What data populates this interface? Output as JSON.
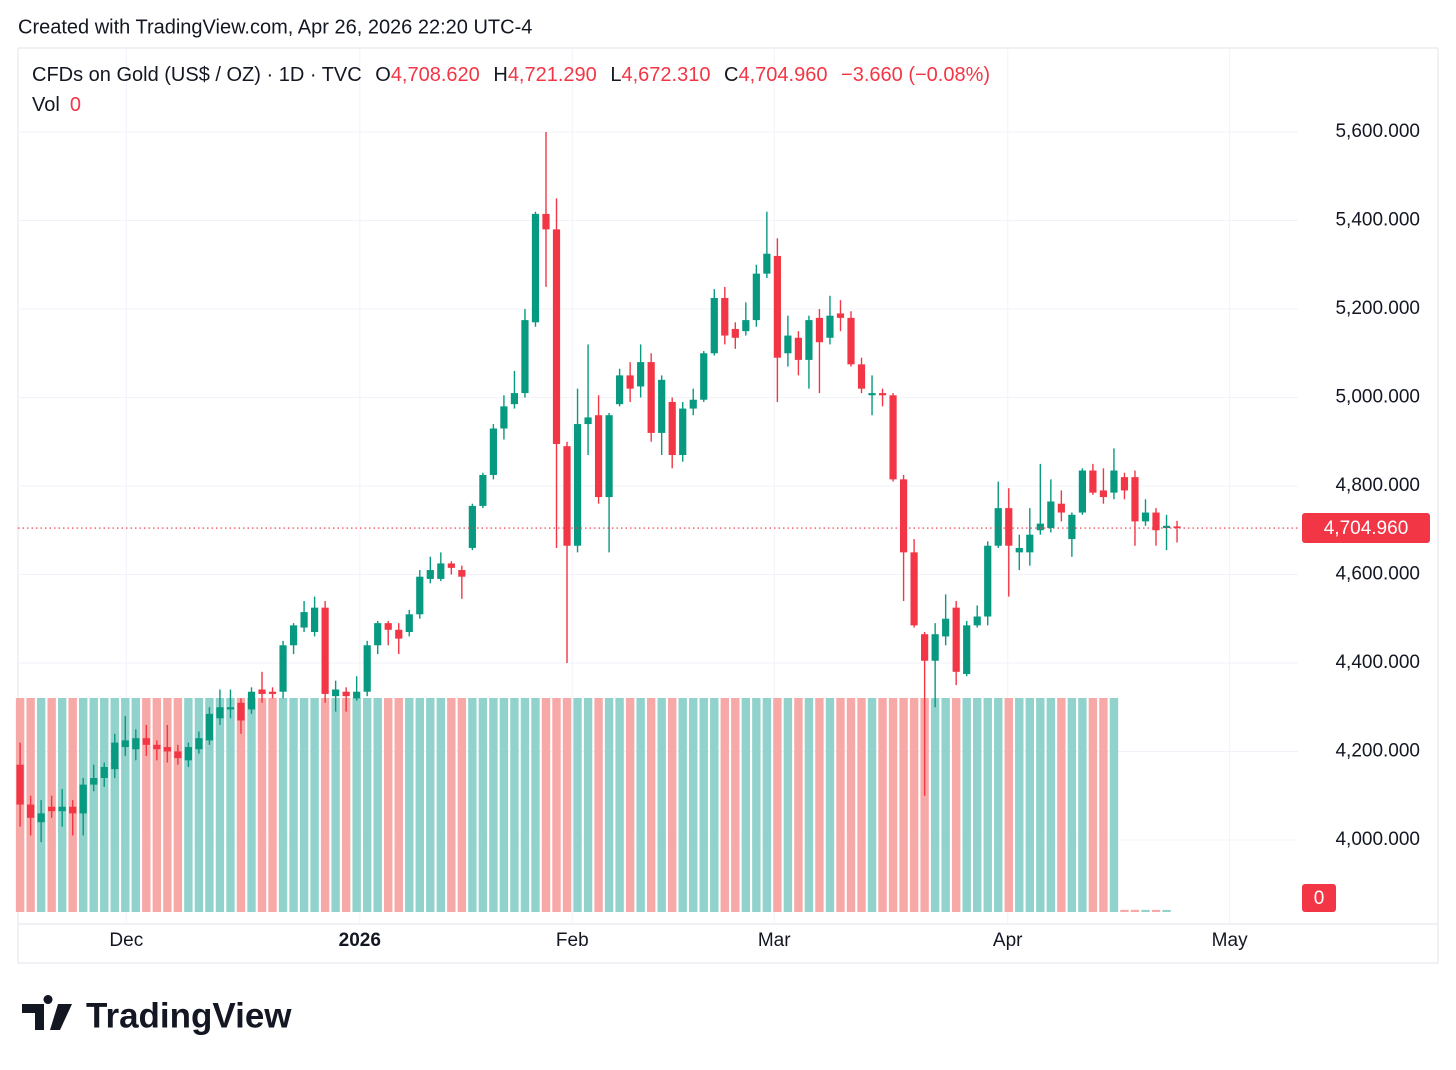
{
  "header": {
    "created": "Created with TradingView.com, Apr 26, 2026 22:20 UTC-4"
  },
  "chart_data": {
    "type": "candlestick",
    "symbol": "CFDs on Gold (US$ / OZ) · 1D · TVC",
    "legend": [
      {
        "key": "O",
        "value": "4,708.620"
      },
      {
        "key": "H",
        "value": "4,721.290"
      },
      {
        "key": "L",
        "value": "4,672.310"
      },
      {
        "key": "C",
        "value": "4,704.960"
      }
    ],
    "change": "−3.660 (−0.08%)",
    "volume_label": "Vol",
    "open": [
      4170,
      4080,
      4040,
      4075,
      4065,
      4075,
      4060,
      4125,
      4140,
      4160,
      4210,
      4205,
      4230,
      4215,
      4210,
      4200,
      4180,
      4205,
      4225,
      4275,
      4295,
      4310,
      4295,
      4340,
      4335,
      4335,
      4440,
      4480,
      4470,
      4525,
      4325,
      4335,
      4320,
      4335,
      4440,
      4490,
      4475,
      4470,
      4510,
      4590,
      4590,
      4625,
      4610,
      4660,
      4755,
      4825,
      4930,
      4985,
      5010,
      5170,
      5415,
      5380,
      4890,
      4665,
      4940,
      4960,
      4775,
      4985,
      5050,
      5025,
      5080,
      4920,
      4990,
      4870,
      4975,
      4995,
      5100,
      5225,
      5155,
      5150,
      5175,
      5280,
      5320,
      5100,
      5135,
      5085,
      5180,
      5135,
      5190,
      5180,
      5075,
      5005,
      5010,
      5005,
      4815,
      4650,
      4465,
      4405,
      4460,
      4525,
      4375,
      4485,
      4505,
      4665,
      4750,
      4650,
      4650,
      4700,
      4705,
      4760,
      4680,
      4740,
      4835,
      4790,
      4785,
      4820,
      4820,
      4720,
      4740,
      4705,
      4708.62
    ],
    "high": [
      4220,
      4100,
      4090,
      4100,
      4115,
      4090,
      4140,
      4170,
      4175,
      4240,
      4280,
      4250,
      4260,
      4225,
      4260,
      4215,
      4220,
      4245,
      4300,
      4340,
      4340,
      4320,
      4345,
      4380,
      4345,
      4450,
      4490,
      4540,
      4550,
      4540,
      4360,
      4345,
      4370,
      4450,
      4495,
      4495,
      4490,
      4520,
      4610,
      4640,
      4650,
      4630,
      4620,
      4760,
      4830,
      4940,
      5005,
      5060,
      5200,
      5420,
      5600,
      5450,
      4900,
      5020,
      5120,
      5005,
      4965,
      5065,
      5080,
      5120,
      5100,
      5050,
      5000,
      4990,
      5020,
      5105,
      5245,
      5250,
      5170,
      5215,
      5300,
      5420,
      5360,
      5185,
      5150,
      5185,
      5200,
      5230,
      5220,
      5195,
      5090,
      5050,
      5020,
      5010,
      4825,
      4680,
      4470,
      4490,
      4555,
      4540,
      4495,
      4530,
      4675,
      4810,
      4795,
      4690,
      4750,
      4850,
      4815,
      4790,
      4740,
      4840,
      4850,
      4840,
      4885,
      4830,
      4835,
      4770,
      4750,
      4735,
      4721.29
    ],
    "low": [
      4030,
      4010,
      3995,
      4050,
      4030,
      4010,
      4010,
      4110,
      4120,
      4140,
      4190,
      4180,
      4190,
      4180,
      4175,
      4170,
      4165,
      4195,
      4215,
      4260,
      4275,
      4240,
      4285,
      4310,
      4320,
      4320,
      4420,
      4470,
      4460,
      4310,
      4290,
      4290,
      4315,
      4325,
      4420,
      4440,
      4420,
      4460,
      4500,
      4580,
      4585,
      4600,
      4545,
      4655,
      4750,
      4815,
      4905,
      4975,
      5000,
      5160,
      5250,
      4660,
      4400,
      4650,
      4870,
      4760,
      4650,
      4980,
      4990,
      5000,
      4900,
      4870,
      4840,
      4855,
      4960,
      4990,
      5095,
      5120,
      5110,
      5140,
      5160,
      5270,
      4990,
      5070,
      5050,
      5020,
      5010,
      5120,
      5150,
      5070,
      5010,
      4960,
      4980,
      4810,
      4540,
      4480,
      4100,
      4300,
      4440,
      4350,
      4370,
      4480,
      4485,
      4660,
      4550,
      4610,
      4620,
      4690,
      4695,
      4720,
      4640,
      4735,
      4780,
      4760,
      4770,
      4770,
      4665,
      4710,
      4665,
      4655,
      4672.31
    ],
    "close": [
      4080,
      4050,
      4060,
      4065,
      4075,
      4060,
      4125,
      4140,
      4165,
      4220,
      4225,
      4230,
      4215,
      4205,
      4200,
      4185,
      4210,
      4230,
      4285,
      4300,
      4300,
      4270,
      4335,
      4330,
      4330,
      4440,
      4485,
      4515,
      4525,
      4330,
      4340,
      4325,
      4335,
      4440,
      4490,
      4475,
      4455,
      4510,
      4595,
      4610,
      4625,
      4615,
      4595,
      4755,
      4825,
      4930,
      4980,
      5010,
      5175,
      5415,
      5380,
      4895,
      4665,
      4940,
      4955,
      4775,
      4960,
      5050,
      5020,
      5080,
      4920,
      5040,
      4870,
      4975,
      4995,
      5100,
      5225,
      5140,
      5135,
      5175,
      5280,
      5325,
      5090,
      5140,
      5085,
      5175,
      5125,
      5185,
      5180,
      5075,
      5020,
      5010,
      5005,
      4815,
      4650,
      4485,
      4405,
      4465,
      4500,
      4380,
      4485,
      4505,
      4665,
      4750,
      4665,
      4660,
      4690,
      4715,
      4765,
      4740,
      4735,
      4835,
      4785,
      4775,
      4835,
      4790,
      4720,
      4740,
      4700,
      4710,
      4704.96
    ],
    "volume": [
      1,
      1,
      1,
      1,
      1,
      1,
      1,
      1,
      1,
      1,
      1,
      1,
      1,
      1,
      1,
      1,
      1,
      1,
      1,
      1,
      1,
      1,
      1,
      1,
      1,
      1,
      1,
      1,
      1,
      1,
      1,
      1,
      1,
      1,
      1,
      1,
      1,
      1,
      1,
      1,
      1,
      1,
      1,
      1,
      1,
      1,
      1,
      1,
      1,
      1,
      1,
      1,
      1,
      1,
      1,
      1,
      1,
      1,
      1,
      1,
      1,
      1,
      1,
      1,
      1,
      1,
      1,
      1,
      1,
      1,
      1,
      1,
      1,
      1,
      1,
      1,
      1,
      1,
      1,
      1,
      1,
      1,
      1,
      1,
      1,
      1,
      1,
      1,
      1,
      1,
      1,
      1,
      1,
      1,
      1,
      1,
      1,
      1,
      1,
      1,
      1,
      1,
      1,
      1,
      1,
      0.01,
      0.01,
      0.01,
      0.01,
      0.01,
      0
    ],
    "vlim": [
      0,
      1
    ],
    "ylim": [
      3810,
      5790
    ],
    "yticks": [
      {
        "value": 4000,
        "label": "4,000.000"
      },
      {
        "value": 4200,
        "label": "4,200.000"
      },
      {
        "value": 4400,
        "label": "4,400.000"
      },
      {
        "value": 4600,
        "label": "4,600.000"
      },
      {
        "value": 4800,
        "label": "4,800.000"
      },
      {
        "value": 5000,
        "label": "5,000.000"
      },
      {
        "value": 5200,
        "label": "5,200.000"
      },
      {
        "value": 5400,
        "label": "5,400.000"
      },
      {
        "value": 5600,
        "label": "5,600.000"
      }
    ],
    "xlim": [
      -0.2,
      121.5
    ],
    "xticks": [
      {
        "value": 10.1,
        "label": "Dec"
      },
      {
        "value": 32.3,
        "label": "2026"
      },
      {
        "value": 52.5,
        "label": "Feb"
      },
      {
        "value": 71.7,
        "label": "Mar"
      },
      {
        "value": 93.9,
        "label": "Apr"
      },
      {
        "value": 115.0,
        "label": "May"
      }
    ],
    "last_price": 4704.96,
    "last_price_label": "4,704.960",
    "up_color": "#089981",
    "down_color": "#f23645",
    "volume_up_color": "#92d2cc",
    "volume_down_color": "#f7a9a7",
    "grid": true
  },
  "footer": {
    "brand": "TradingView"
  }
}
